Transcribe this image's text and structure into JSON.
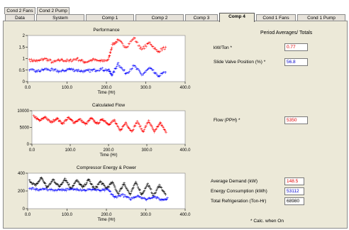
{
  "tabs_row1": [
    {
      "label": "Cond 2 Fans"
    },
    {
      "label": "Cond 2 Pump"
    }
  ],
  "tabs_row2": [
    {
      "label": "Data"
    },
    {
      "label": "System"
    },
    {
      "label": "Comp 1"
    },
    {
      "label": "Comp 2"
    },
    {
      "label": "Comp 3"
    },
    {
      "label": "Comp 4",
      "active": true
    },
    {
      "label": "Cond 1 Fans"
    },
    {
      "label": "Cond 1 Pump"
    }
  ],
  "colors": {
    "red_series": "#ff0000",
    "blue_series": "#0000ff",
    "black_series": "#000000",
    "panel_bg": "#ece9d8"
  },
  "right_panel": {
    "header": "Period Averages/ Totals",
    "kw_ton": {
      "label": "kW/Ton *",
      "value": "0.77"
    },
    "slide_valve": {
      "label": "Slide Valve Position (%) *",
      "value": "56.8"
    },
    "flow": {
      "label": "Flow (PPH) *",
      "value": "5350"
    },
    "avg_demand": {
      "label": "Average Demand (kW)",
      "value": "148.5"
    },
    "energy_consumption": {
      "label": "Energy Consumption (kWh)",
      "value": "53112"
    },
    "total_refrigeration": {
      "label": "Total Refrigeration (Ton-Hr)",
      "value": "68980"
    },
    "footnote": "* Calc. when On"
  },
  "chart_data": [
    {
      "type": "scatter",
      "title": "Performance",
      "xlabel": "Time (Hr)",
      "ylabel": "",
      "xlim": [
        0,
        400
      ],
      "ylim": [
        0,
        2
      ],
      "x_ticks": [
        "0.0",
        "100.0",
        "200.0",
        "300.0",
        "400.0"
      ],
      "y_ticks": [
        "0",
        "0.5",
        "1",
        "1.5",
        "2"
      ],
      "series": [
        {
          "color": "red",
          "note": "approx. 0.8-1.0 until ~215 h, then ~1.0-2.0",
          "points": [
            [
              5,
              0.95
            ],
            [
              25,
              0.9
            ],
            [
              45,
              1.0
            ],
            [
              65,
              0.85
            ],
            [
              85,
              0.95
            ],
            [
              105,
              0.9
            ],
            [
              125,
              1.0
            ],
            [
              145,
              0.85
            ],
            [
              165,
              0.95
            ],
            [
              185,
              0.9
            ],
            [
              205,
              0.95
            ],
            [
              215,
              1.6
            ],
            [
              230,
              1.8
            ],
            [
              250,
              1.5
            ],
            [
              270,
              1.9
            ],
            [
              290,
              1.4
            ],
            [
              310,
              1.7
            ],
            [
              330,
              1.3
            ],
            [
              350,
              1.5
            ]
          ]
        },
        {
          "color": "blue",
          "note": "approx. 0.4-0.6 until ~215 h, then ~0.2-1.0",
          "points": [
            [
              5,
              0.5
            ],
            [
              25,
              0.45
            ],
            [
              45,
              0.55
            ],
            [
              65,
              0.5
            ],
            [
              85,
              0.45
            ],
            [
              105,
              0.55
            ],
            [
              125,
              0.5
            ],
            [
              145,
              0.45
            ],
            [
              165,
              0.5
            ],
            [
              185,
              0.55
            ],
            [
              205,
              0.5
            ],
            [
              215,
              0.3
            ],
            [
              230,
              0.8
            ],
            [
              250,
              0.35
            ],
            [
              270,
              0.7
            ],
            [
              290,
              0.3
            ],
            [
              310,
              0.6
            ],
            [
              330,
              0.25
            ],
            [
              350,
              0.4
            ]
          ]
        }
      ]
    },
    {
      "type": "scatter",
      "title": "Calculated Flow",
      "xlabel": "Time (Hr)",
      "ylabel": "",
      "xlim": [
        0,
        400
      ],
      "ylim": [
        0,
        10000
      ],
      "x_ticks": [
        "0.0",
        "100.0",
        "200.0",
        "300.0",
        "400.0"
      ],
      "y_ticks": [
        "0",
        "5000",
        "10000"
      ],
      "series": [
        {
          "color": "red",
          "note": "periodic approx. 6000-9000 until ~220 h, then ~3500-8000",
          "points": [
            [
              5,
              8500
            ],
            [
              20,
              7000
            ],
            [
              35,
              8200
            ],
            [
              50,
              6500
            ],
            [
              65,
              7800
            ],
            [
              80,
              6200
            ],
            [
              95,
              8000
            ],
            [
              110,
              6500
            ],
            [
              125,
              7500
            ],
            [
              140,
              6000
            ],
            [
              155,
              7800
            ],
            [
              170,
              6200
            ],
            [
              185,
              7500
            ],
            [
              200,
              6000
            ],
            [
              215,
              7200
            ],
            [
              230,
              4000
            ],
            [
              245,
              6500
            ],
            [
              260,
              3800
            ],
            [
              275,
              6800
            ],
            [
              290,
              3800
            ],
            [
              305,
              7000
            ],
            [
              320,
              3600
            ],
            [
              335,
              6500
            ],
            [
              350,
              3500
            ]
          ]
        }
      ]
    },
    {
      "type": "scatter",
      "title": "Compressor Energy & Power",
      "xlabel": "Time (Hr)",
      "ylabel": "",
      "xlim": [
        0,
        400
      ],
      "ylim": [
        0,
        400
      ],
      "x_ticks": [
        "0.0",
        "100.0",
        "200.0",
        "300.0",
        "400.0"
      ],
      "y_ticks": [
        "0",
        "200",
        "400"
      ],
      "series": [
        {
          "color": "black",
          "note": "approx. 200-400 until ~220 h, then ~150-350",
          "points": [
            [
              5,
              320
            ],
            [
              20,
              260
            ],
            [
              35,
              350
            ],
            [
              50,
              240
            ],
            [
              65,
              330
            ],
            [
              80,
              250
            ],
            [
              95,
              340
            ],
            [
              110,
              230
            ],
            [
              125,
              320
            ],
            [
              140,
              240
            ],
            [
              155,
              330
            ],
            [
              170,
              220
            ],
            [
              185,
              310
            ],
            [
              200,
              230
            ],
            [
              215,
              300
            ],
            [
              230,
              170
            ],
            [
              245,
              290
            ],
            [
              260,
              160
            ],
            [
              275,
              300
            ],
            [
              290,
              160
            ],
            [
              305,
              280
            ],
            [
              320,
              150
            ],
            [
              335,
              270
            ],
            [
              350,
              160
            ]
          ]
        },
        {
          "color": "blue",
          "note": "approx. 200-250 until ~220 h, then ~100-200",
          "points": [
            [
              5,
              230
            ],
            [
              25,
              215
            ],
            [
              45,
              225
            ],
            [
              65,
              210
            ],
            [
              85,
              220
            ],
            [
              105,
              215
            ],
            [
              125,
              225
            ],
            [
              145,
              210
            ],
            [
              165,
              220
            ],
            [
              185,
              205
            ],
            [
              205,
              215
            ],
            [
              220,
              130
            ],
            [
              240,
              160
            ],
            [
              260,
              110
            ],
            [
              280,
              150
            ],
            [
              300,
              105
            ],
            [
              320,
              140
            ],
            [
              340,
              100
            ],
            [
              355,
              120
            ]
          ]
        }
      ]
    }
  ]
}
